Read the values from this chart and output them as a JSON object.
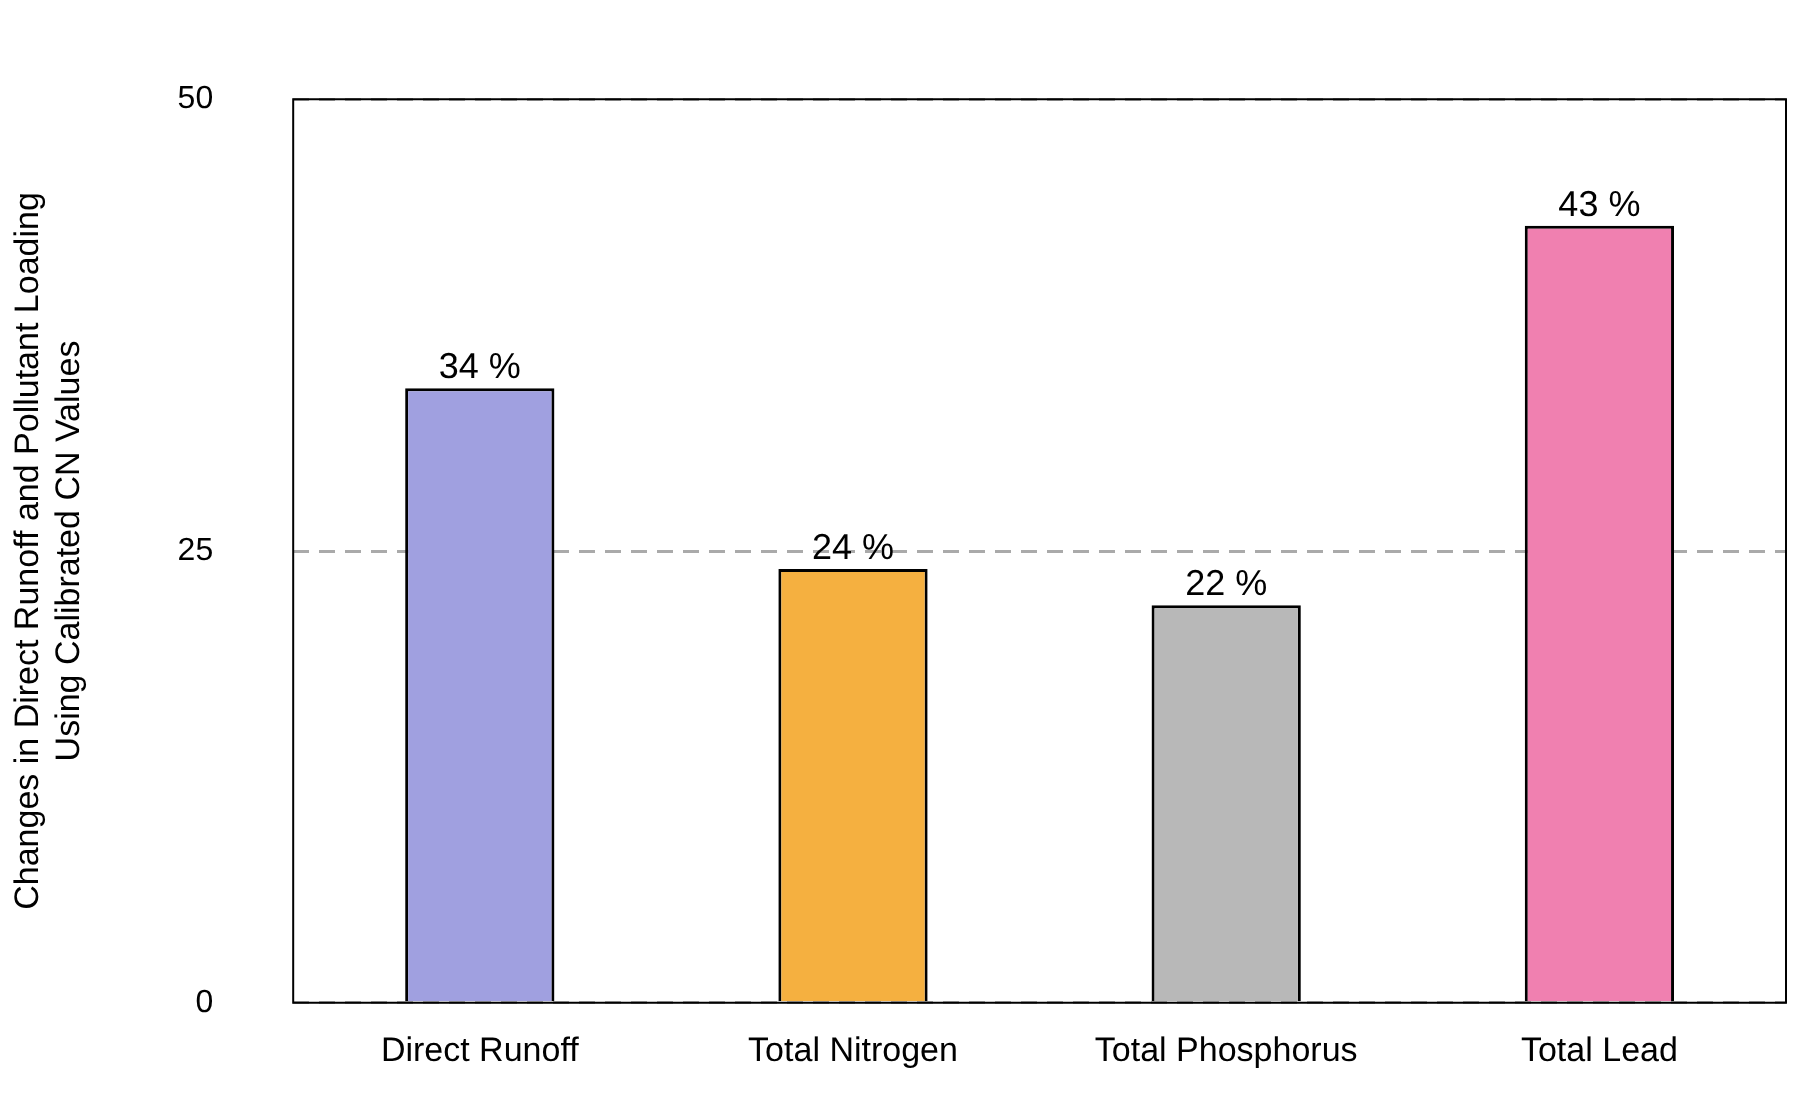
{
  "chart_data": {
    "type": "bar",
    "ylabel": "Changes in Direct Runoff and Pollutant Loading\nUsing Calibrated CN Values",
    "categories": [
      "Direct Runoff",
      "Total Nitrogen",
      "Total Phosphorus",
      "Total Lead"
    ],
    "values": [
      34,
      24,
      22,
      43
    ],
    "colors": [
      "#a0a0e0",
      "#f5b040",
      "#b8b8b8",
      "#f080b0"
    ],
    "value_labels": [
      "34 %",
      "24 %",
      "22 %",
      "43 %"
    ],
    "ylim": [
      0,
      50
    ],
    "yticks": [
      0,
      25,
      50
    ],
    "grid": "y",
    "legend": false
  }
}
